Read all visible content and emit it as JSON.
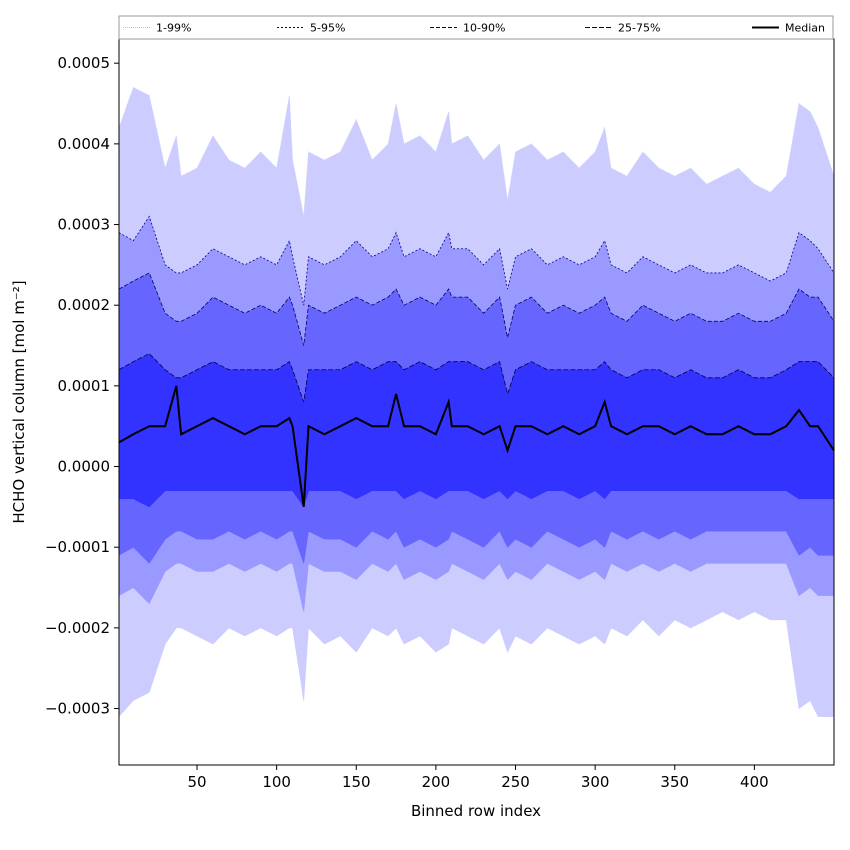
{
  "chart_data": {
    "type": "area",
    "xlabel": "Binned row index",
    "ylabel": "HCHO vertical column [mol m⁻²]",
    "xlim": [
      1,
      450
    ],
    "ylim": [
      -0.00037,
      0.00053
    ],
    "x_ticks": [
      50,
      100,
      150,
      200,
      250,
      300,
      350,
      400
    ],
    "x_tick_labels": [
      "50",
      "100",
      "150",
      "200",
      "250",
      "300",
      "350",
      "400"
    ],
    "y_ticks": [
      -0.0003,
      -0.0002,
      -0.0001,
      0.0,
      0.0001,
      0.0002,
      0.0003,
      0.0004,
      0.0005
    ],
    "y_tick_labels": [
      "−0.0003",
      "−0.0002",
      "−0.0001",
      "0.0000",
      "0.0001",
      "0.0002",
      "0.0003",
      "0.0004",
      "0.0005"
    ],
    "grid": false,
    "legend_position": "top",
    "x": [
      1,
      10,
      20,
      30,
      37,
      40,
      50,
      60,
      70,
      80,
      90,
      100,
      108,
      110,
      117,
      120,
      130,
      140,
      150,
      160,
      170,
      175,
      180,
      190,
      200,
      208,
      210,
      220,
      230,
      240,
      245,
      250,
      260,
      270,
      280,
      290,
      300,
      306,
      310,
      320,
      330,
      340,
      350,
      360,
      370,
      380,
      390,
      400,
      410,
      420,
      428,
      435,
      440,
      450
    ],
    "series": [
      {
        "name": "1-99%",
        "color": "#ccccff",
        "line_color": "#ccccff",
        "lower": [
          -0.00031,
          -0.00029,
          -0.00028,
          -0.00022,
          -0.0002,
          -0.0002,
          -0.00021,
          -0.00022,
          -0.0002,
          -0.00021,
          -0.0002,
          -0.00021,
          -0.0002,
          -0.0002,
          -0.00029,
          -0.0002,
          -0.00022,
          -0.00021,
          -0.00023,
          -0.0002,
          -0.00021,
          -0.0002,
          -0.00022,
          -0.00021,
          -0.00023,
          -0.00022,
          -0.0002,
          -0.00021,
          -0.00022,
          -0.0002,
          -0.00023,
          -0.00021,
          -0.00022,
          -0.0002,
          -0.00021,
          -0.00022,
          -0.00021,
          -0.00022,
          -0.0002,
          -0.00021,
          -0.00019,
          -0.00021,
          -0.00019,
          -0.0002,
          -0.00019,
          -0.00018,
          -0.00019,
          -0.00018,
          -0.00019,
          -0.00019,
          -0.0003,
          -0.00029,
          -0.00031,
          -0.00031
        ],
        "upper": [
          0.00042,
          0.00047,
          0.00046,
          0.00037,
          0.00041,
          0.00036,
          0.00037,
          0.00041,
          0.00038,
          0.00037,
          0.00039,
          0.00037,
          0.00046,
          0.00038,
          0.00031,
          0.00039,
          0.00038,
          0.00039,
          0.00043,
          0.00038,
          0.0004,
          0.00045,
          0.0004,
          0.00041,
          0.00039,
          0.00044,
          0.0004,
          0.00041,
          0.00038,
          0.0004,
          0.00033,
          0.00039,
          0.0004,
          0.00038,
          0.00039,
          0.00037,
          0.00039,
          0.00042,
          0.00037,
          0.00036,
          0.00039,
          0.00037,
          0.00036,
          0.00037,
          0.00035,
          0.00036,
          0.00037,
          0.00035,
          0.00034,
          0.00036,
          0.00045,
          0.00044,
          0.00042,
          0.00036
        ]
      },
      {
        "name": "5-95%",
        "color": "#9999ff",
        "line_color": "#000088",
        "lower": [
          -0.00016,
          -0.00015,
          -0.00017,
          -0.00013,
          -0.00012,
          -0.00012,
          -0.00013,
          -0.00013,
          -0.00012,
          -0.00013,
          -0.00012,
          -0.00013,
          -0.00012,
          -0.00012,
          -0.00018,
          -0.00012,
          -0.00013,
          -0.00013,
          -0.00014,
          -0.00012,
          -0.00013,
          -0.00012,
          -0.00014,
          -0.00013,
          -0.00014,
          -0.00013,
          -0.00012,
          -0.00013,
          -0.00014,
          -0.00012,
          -0.00014,
          -0.00013,
          -0.00014,
          -0.00012,
          -0.00013,
          -0.00014,
          -0.00013,
          -0.00014,
          -0.00012,
          -0.00013,
          -0.00012,
          -0.00013,
          -0.00012,
          -0.00013,
          -0.00012,
          -0.00012,
          -0.00012,
          -0.00012,
          -0.00012,
          -0.00012,
          -0.00016,
          -0.00015,
          -0.00016,
          -0.00016
        ],
        "upper": [
          0.00029,
          0.00028,
          0.00031,
          0.00025,
          0.00024,
          0.00024,
          0.00025,
          0.00027,
          0.00026,
          0.00025,
          0.00026,
          0.00025,
          0.00028,
          0.00026,
          0.0002,
          0.00026,
          0.00025,
          0.00026,
          0.00028,
          0.00026,
          0.00027,
          0.00029,
          0.00026,
          0.00027,
          0.00026,
          0.00029,
          0.00027,
          0.00027,
          0.00025,
          0.00027,
          0.00022,
          0.00026,
          0.00027,
          0.00025,
          0.00026,
          0.00025,
          0.00026,
          0.00028,
          0.00025,
          0.00024,
          0.00026,
          0.00025,
          0.00024,
          0.00025,
          0.00024,
          0.00024,
          0.00025,
          0.00024,
          0.00023,
          0.00024,
          0.00029,
          0.00028,
          0.00027,
          0.00024
        ]
      },
      {
        "name": "10-90%",
        "color": "#6666ff",
        "line_color": "#000066",
        "lower": [
          -0.00011,
          -0.0001,
          -0.00012,
          -9e-05,
          -8e-05,
          -8e-05,
          -9e-05,
          -9e-05,
          -8e-05,
          -9e-05,
          -8e-05,
          -9e-05,
          -8e-05,
          -8e-05,
          -0.00012,
          -8e-05,
          -9e-05,
          -9e-05,
          -0.0001,
          -8e-05,
          -9e-05,
          -8e-05,
          -0.0001,
          -9e-05,
          -0.0001,
          -9e-05,
          -8e-05,
          -9e-05,
          -0.0001,
          -8e-05,
          -0.0001,
          -9e-05,
          -0.0001,
          -8e-05,
          -9e-05,
          -0.0001,
          -9e-05,
          -0.0001,
          -8e-05,
          -9e-05,
          -8e-05,
          -9e-05,
          -8e-05,
          -9e-05,
          -8e-05,
          -8e-05,
          -8e-05,
          -8e-05,
          -8e-05,
          -8e-05,
          -0.00011,
          -0.0001,
          -0.00011,
          -0.00011
        ],
        "upper": [
          0.00022,
          0.00023,
          0.00024,
          0.00019,
          0.00018,
          0.00018,
          0.00019,
          0.00021,
          0.0002,
          0.00019,
          0.0002,
          0.00019,
          0.00021,
          0.0002,
          0.00015,
          0.0002,
          0.00019,
          0.0002,
          0.00021,
          0.0002,
          0.00021,
          0.00022,
          0.0002,
          0.00021,
          0.0002,
          0.00022,
          0.00021,
          0.00021,
          0.00019,
          0.00021,
          0.00016,
          0.0002,
          0.00021,
          0.00019,
          0.0002,
          0.00019,
          0.0002,
          0.00021,
          0.00019,
          0.00018,
          0.0002,
          0.00019,
          0.00018,
          0.00019,
          0.00018,
          0.00018,
          0.00019,
          0.00018,
          0.00018,
          0.00019,
          0.00022,
          0.00021,
          0.00021,
          0.00018
        ]
      },
      {
        "name": "25-75%",
        "color": "#3333ff",
        "line_color": "#000044",
        "lower": [
          -4e-05,
          -4e-05,
          -5e-05,
          -3e-05,
          -3e-05,
          -3e-05,
          -3e-05,
          -3e-05,
          -3e-05,
          -3e-05,
          -3e-05,
          -3e-05,
          -3e-05,
          -3e-05,
          -5e-05,
          -3e-05,
          -3e-05,
          -3e-05,
          -4e-05,
          -3e-05,
          -3e-05,
          -3e-05,
          -4e-05,
          -3e-05,
          -4e-05,
          -3e-05,
          -3e-05,
          -3e-05,
          -4e-05,
          -3e-05,
          -4e-05,
          -3e-05,
          -4e-05,
          -3e-05,
          -3e-05,
          -4e-05,
          -3e-05,
          -4e-05,
          -3e-05,
          -3e-05,
          -3e-05,
          -3e-05,
          -3e-05,
          -3e-05,
          -3e-05,
          -3e-05,
          -3e-05,
          -3e-05,
          -3e-05,
          -3e-05,
          -4e-05,
          -4e-05,
          -4e-05,
          -4e-05
        ],
        "upper": [
          0.00012,
          0.00013,
          0.00014,
          0.00012,
          0.00011,
          0.00011,
          0.00012,
          0.00013,
          0.00012,
          0.00012,
          0.00012,
          0.00012,
          0.00013,
          0.00012,
          8e-05,
          0.00012,
          0.00012,
          0.00012,
          0.00013,
          0.00012,
          0.00013,
          0.00013,
          0.00012,
          0.00013,
          0.00012,
          0.00013,
          0.00013,
          0.00013,
          0.00012,
          0.00013,
          9e-05,
          0.00012,
          0.00013,
          0.00012,
          0.00012,
          0.00012,
          0.00012,
          0.00013,
          0.00012,
          0.00011,
          0.00012,
          0.00012,
          0.00011,
          0.00012,
          0.00011,
          0.00011,
          0.00012,
          0.00011,
          0.00011,
          0.00012,
          0.00013,
          0.00013,
          0.00013,
          0.00011
        ]
      },
      {
        "name": "Median",
        "color": "#000000",
        "line_color": "#000000",
        "values": [
          3e-05,
          4e-05,
          5e-05,
          5e-05,
          0.0001,
          4e-05,
          5e-05,
          6e-05,
          5e-05,
          4e-05,
          5e-05,
          5e-05,
          6e-05,
          5e-05,
          -5e-05,
          5e-05,
          4e-05,
          5e-05,
          6e-05,
          5e-05,
          5e-05,
          9e-05,
          5e-05,
          5e-05,
          4e-05,
          8e-05,
          5e-05,
          5e-05,
          4e-05,
          5e-05,
          2e-05,
          5e-05,
          5e-05,
          4e-05,
          5e-05,
          4e-05,
          5e-05,
          8e-05,
          5e-05,
          4e-05,
          5e-05,
          5e-05,
          4e-05,
          5e-05,
          4e-05,
          4e-05,
          5e-05,
          4e-05,
          4e-05,
          5e-05,
          7e-05,
          5e-05,
          5e-05,
          2e-05
        ]
      }
    ]
  }
}
